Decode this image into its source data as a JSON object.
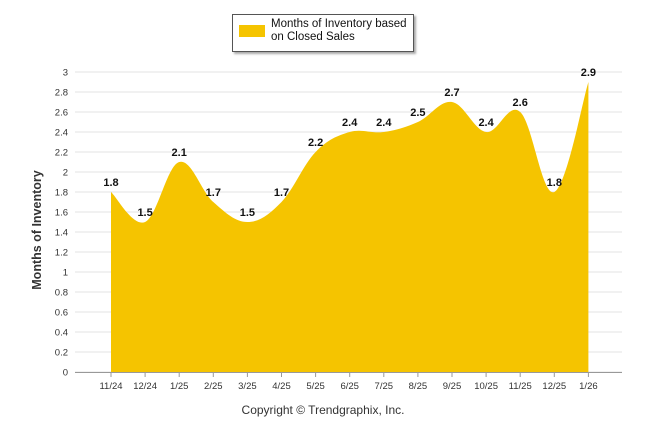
{
  "chart_data": {
    "type": "area",
    "title": "",
    "xlabel": "",
    "ylabel": "Months of Inventory",
    "ylim": [
      0,
      3
    ],
    "ytick_step": 0.2,
    "yticks": [
      "0",
      "0.2",
      "0.4",
      "0.6",
      "0.8",
      "1",
      "1.2",
      "1.4",
      "1.6",
      "1.8",
      "2",
      "2.2",
      "2.4",
      "2.6",
      "2.8",
      "3"
    ],
    "categories": [
      "11/24",
      "12/24",
      "1/25",
      "2/25",
      "3/25",
      "4/25",
      "5/25",
      "6/25",
      "7/25",
      "8/25",
      "9/25",
      "10/25",
      "11/25",
      "12/25",
      "1/26"
    ],
    "series": [
      {
        "name": "Months of Inventory based on Closed Sales",
        "values": [
          1.8,
          1.5,
          2.1,
          1.7,
          1.5,
          1.7,
          2.2,
          2.4,
          2.4,
          2.5,
          2.7,
          2.4,
          2.6,
          1.8,
          2.9
        ],
        "color": "#F5C400"
      }
    ],
    "data_labels": [
      "1.8",
      "1.5",
      "2.1",
      "1.7",
      "1.5",
      "1.7",
      "2.2",
      "2.4",
      "2.4",
      "2.5",
      "2.7",
      "2.4",
      "2.6",
      "1.8",
      "2.9"
    ],
    "legend": {
      "label": "Months of Inventory based on Closed Sales",
      "position": "top-center"
    },
    "grid": true
  },
  "footer": {
    "copyright": "Copyright © Trendgraphix, Inc."
  },
  "colors": {
    "fill": "#F5C400",
    "grid": "#e3e3e3",
    "axis": "#999999"
  }
}
